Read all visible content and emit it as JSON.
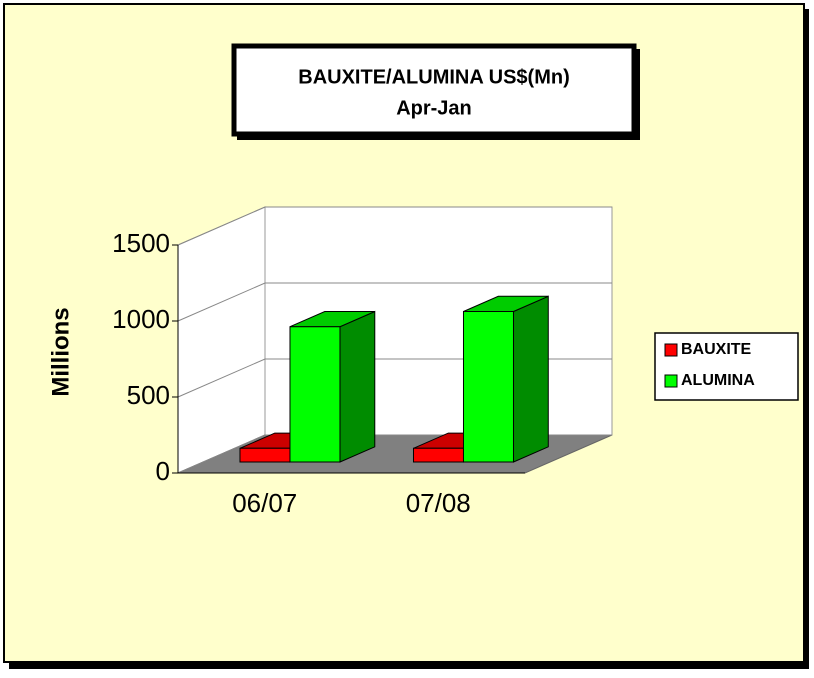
{
  "chart_data": {
    "type": "bar3d",
    "title": [
      "BAUXITE/ALUMINA US$(Mn)",
      "Apr-Jan"
    ],
    "y_label": "Millions",
    "categories": [
      "06/07",
      "07/08"
    ],
    "series": [
      {
        "name": "BAUXITE",
        "color": "#ff0000",
        "values": [
          90,
          90
        ]
      },
      {
        "name": "ALUMINA",
        "color": "#00ff00",
        "values": [
          890,
          990
        ]
      }
    ],
    "ylim": [
      0,
      1500
    ],
    "yticks": [
      0,
      500,
      1000,
      1500
    ],
    "grid": true
  }
}
